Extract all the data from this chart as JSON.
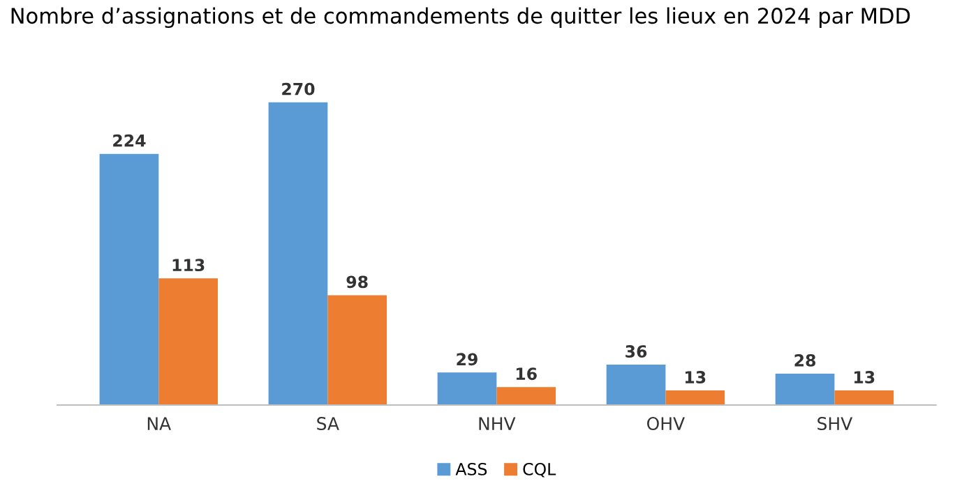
{
  "chart_data": {
    "type": "bar",
    "title": "Nombre d’assignations et de commandements de quitter les lieux en 2024 par MDD",
    "categories": [
      "NA",
      "SA",
      "NHV",
      "OHV",
      "SHV"
    ],
    "series": [
      {
        "name": "ASS",
        "color": "#5b9bd5",
        "values": [
          224,
          270,
          29,
          36,
          28
        ]
      },
      {
        "name": "CQL",
        "color": "#ed7d31",
        "values": [
          113,
          98,
          16,
          13,
          13
        ]
      }
    ],
    "data_labels": true,
    "legend": "bottom"
  }
}
